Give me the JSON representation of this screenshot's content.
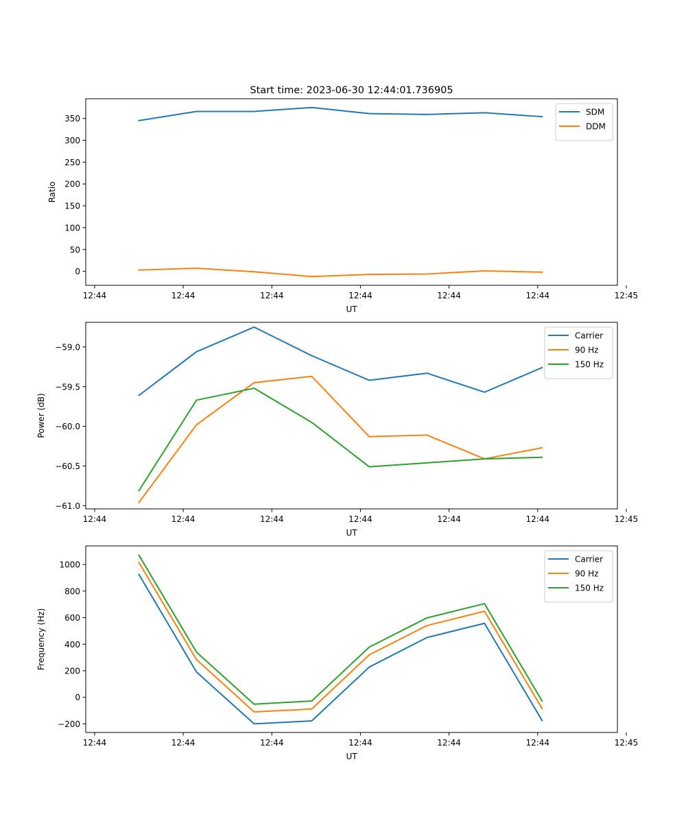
{
  "figure": {
    "title": "Start time: 2023-06-30 12:44:01.736905"
  },
  "chart_data": [
    {
      "type": "line",
      "xlabel": "UT",
      "ylabel": "Ratio",
      "x_tick_labels": [
        "12:44",
        "12:44",
        "12:44",
        "12:44",
        "12:44",
        "12:44",
        "12:45"
      ],
      "x_points": [
        0.5,
        1.15,
        1.8,
        2.45,
        3.1,
        3.75,
        4.4,
        5.05
      ],
      "xlim": [
        -0.1,
        5.9
      ],
      "y_ticks": [
        0,
        50,
        100,
        150,
        200,
        250,
        300,
        350
      ],
      "ylim": [
        -32,
        395
      ],
      "legend_position": "top-right",
      "series": [
        {
          "name": "SDM",
          "color": "#1f77b4",
          "values": [
            345,
            366,
            366,
            375,
            361,
            359,
            363,
            354
          ]
        },
        {
          "name": "DDM",
          "color": "#ff7f0e",
          "values": [
            3,
            7,
            -1,
            -12,
            -7,
            -6,
            1,
            -2
          ]
        }
      ]
    },
    {
      "type": "line",
      "xlabel": "UT",
      "ylabel": "Power (dB)",
      "x_tick_labels": [
        "12:44",
        "12:44",
        "12:44",
        "12:44",
        "12:44",
        "12:44",
        "12:45"
      ],
      "x_points": [
        0.5,
        1.15,
        1.8,
        2.45,
        3.1,
        3.75,
        4.4,
        5.05
      ],
      "xlim": [
        -0.1,
        5.9
      ],
      "y_ticks": [
        -61.0,
        -60.5,
        -60.0,
        -59.5,
        -59.0
      ],
      "y_tick_labels": [
        "−61.0",
        "−60.5",
        "−60.0",
        "−59.5",
        "−59.0"
      ],
      "ylim": [
        -61.04,
        -58.69
      ],
      "legend_position": "top-right",
      "series": [
        {
          "name": "Carrier",
          "color": "#1f77b4",
          "values": [
            -59.61,
            -59.06,
            -58.75,
            -59.11,
            -59.42,
            -59.33,
            -59.57,
            -59.26
          ]
        },
        {
          "name": "90 Hz",
          "color": "#ff7f0e",
          "values": [
            -60.96,
            -59.98,
            -59.45,
            -59.37,
            -60.13,
            -60.11,
            -60.41,
            -60.27
          ]
        },
        {
          "name": "150 Hz",
          "color": "#2ca02c",
          "values": [
            -60.81,
            -59.67,
            -59.52,
            -59.95,
            -60.51,
            -60.46,
            -60.41,
            -60.39
          ]
        }
      ]
    },
    {
      "type": "line",
      "xlabel": "UT",
      "ylabel": "Frequency (Hz)",
      "x_tick_labels": [
        "12:44",
        "12:44",
        "12:44",
        "12:44",
        "12:44",
        "12:44",
        "12:45"
      ],
      "x_points": [
        0.5,
        1.15,
        1.8,
        2.45,
        3.1,
        3.75,
        4.4,
        5.05
      ],
      "xlim": [
        -0.1,
        5.9
      ],
      "y_ticks": [
        -200,
        0,
        200,
        400,
        600,
        800,
        1000
      ],
      "y_tick_labels": [
        "−200",
        "0",
        "200",
        "400",
        "600",
        "800",
        "1000"
      ],
      "ylim": [
        -265,
        1140
      ],
      "legend_position": "top-right",
      "series": [
        {
          "name": "Carrier",
          "color": "#1f77b4",
          "values": [
            925,
            190,
            -200,
            -178,
            228,
            450,
            557,
            -175
          ]
        },
        {
          "name": "90 Hz",
          "color": "#ff7f0e",
          "values": [
            1015,
            284,
            -110,
            -88,
            320,
            540,
            648,
            -85
          ]
        },
        {
          "name": "150 Hz",
          "color": "#2ca02c",
          "values": [
            1070,
            340,
            -52,
            -28,
            378,
            598,
            705,
            -28
          ]
        }
      ]
    }
  ]
}
